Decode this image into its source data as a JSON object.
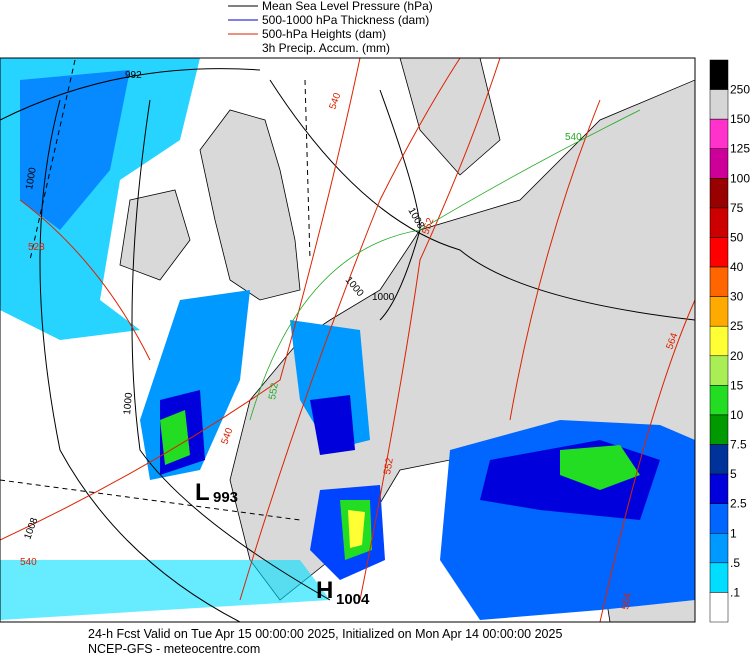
{
  "legend": {
    "items": [
      {
        "label": "Mean Sea Level Pressure (hPa)",
        "color": "#000000"
      },
      {
        "label": "500-1000 hPa Thickness (dam)",
        "color": "#0000cc"
      },
      {
        "label": "500-hPa Heights (dam)",
        "color": "#dd2200"
      },
      {
        "label": "3h Precip. Accum. (mm)",
        "color": null
      }
    ]
  },
  "colorbar": {
    "colors": [
      "#000000",
      "#d6d6d6",
      "#ff33cc",
      "#cc0099",
      "#990000",
      "#cc0000",
      "#ff0000",
      "#ff6600",
      "#ffaa00",
      "#ffff33",
      "#aaee55",
      "#22dd22",
      "#009900",
      "#003399",
      "#0000dd",
      "#0066ff",
      "#0099ff",
      "#00ddff",
      "#ffffff"
    ],
    "labels": [
      "250",
      "150",
      "125",
      "100",
      "75",
      "50",
      "40",
      "30",
      "25",
      "20",
      "15",
      "10",
      "7.5",
      "5",
      "2.5",
      "1",
      ".5",
      ".1"
    ]
  },
  "map": {
    "contour_labels": [
      "992",
      "1000",
      "1000",
      "1000",
      "1008",
      "1008",
      "1000",
      "528",
      "540",
      "552",
      "564",
      "540",
      "552",
      "540",
      "540",
      "552",
      "564"
    ],
    "lows": [
      {
        "letter": "L",
        "value": "993"
      }
    ],
    "highs": [
      {
        "letter": "H",
        "value": "1004"
      }
    ]
  },
  "footer": {
    "line1": "24-h Fcst Valid on Tue Apr 15 00:00:00 2025, Initialized on Mon Apr 14 00:00:00 2025",
    "line2": "NCEP-GFS  - meteocentre.com"
  }
}
